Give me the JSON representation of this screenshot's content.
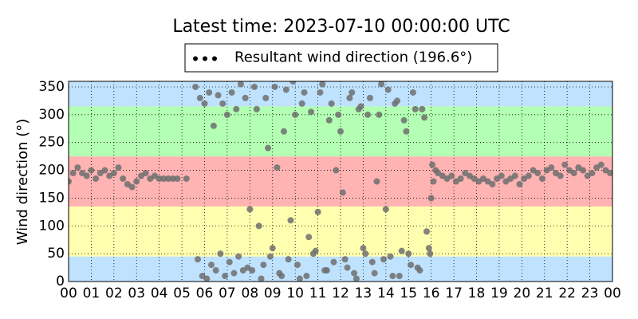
{
  "chart_data": {
    "type": "scatter",
    "title": "Latest time: 2023-07-10 00:00:00 UTC",
    "y_label": "Wind direction (°)",
    "legend_position": "top-center",
    "grid": true,
    "xlim": [
      0,
      24
    ],
    "ylim": [
      0,
      360
    ],
    "xticks": [
      {
        "value": 0,
        "label": "00"
      },
      {
        "value": 1,
        "label": "01"
      },
      {
        "value": 2,
        "label": "02"
      },
      {
        "value": 3,
        "label": "03"
      },
      {
        "value": 4,
        "label": "04"
      },
      {
        "value": 5,
        "label": "05"
      },
      {
        "value": 6,
        "label": "06"
      },
      {
        "value": 7,
        "label": "07"
      },
      {
        "value": 8,
        "label": "08"
      },
      {
        "value": 9,
        "label": "09"
      },
      {
        "value": 10,
        "label": "10"
      },
      {
        "value": 11,
        "label": "11"
      },
      {
        "value": 12,
        "label": "12"
      },
      {
        "value": 13,
        "label": "13"
      },
      {
        "value": 14,
        "label": "14"
      },
      {
        "value": 15,
        "label": "15"
      },
      {
        "value": 16,
        "label": "16"
      },
      {
        "value": 17,
        "label": "17"
      },
      {
        "value": 18,
        "label": "18"
      },
      {
        "value": 19,
        "label": "19"
      },
      {
        "value": 20,
        "label": "20"
      },
      {
        "value": 21,
        "label": "21"
      },
      {
        "value": 22,
        "label": "22"
      },
      {
        "value": 23,
        "label": "23"
      },
      {
        "value": 24,
        "label": "00"
      }
    ],
    "yticks": [
      0,
      50,
      100,
      150,
      200,
      250,
      300,
      350
    ],
    "bands": [
      {
        "from": 0,
        "to": 45,
        "color": "#bfe2ff"
      },
      {
        "from": 45,
        "to": 135,
        "color": "#ffffb0"
      },
      {
        "from": 135,
        "to": 225,
        "color": "#ffb3b3"
      },
      {
        "from": 225,
        "to": 315,
        "color": "#b3ffb3"
      },
      {
        "from": 315,
        "to": 360,
        "color": "#bfe2ff"
      }
    ],
    "series": [
      {
        "name": "Resultant wind direction (196.6°)",
        "color": "#6e6e6e",
        "x": [
          0,
          0.2,
          0.4,
          0.6,
          0.8,
          1,
          1.2,
          1.4,
          1.6,
          1.8,
          2,
          2.2,
          2.4,
          2.6,
          2.8,
          3,
          3.2,
          3.4,
          3.6,
          3.8,
          4,
          4.2,
          4.4,
          4.6,
          4.8,
          5.2,
          5.6,
          5.7,
          5.8,
          5.9,
          6,
          6.1,
          6.2,
          6.3,
          6.4,
          6.5,
          6.6,
          6.7,
          6.8,
          6.9,
          7,
          7.1,
          7.2,
          7.3,
          7.4,
          7.5,
          7.6,
          7.7,
          7.8,
          7.9,
          8,
          8.2,
          8.4,
          8.6,
          8.8,
          9,
          9.2,
          9.4,
          9.6,
          9.8,
          10,
          10.2,
          10.4,
          10.6,
          10.8,
          11,
          11.2,
          11.4,
          11.6,
          11.8,
          12,
          12.2,
          12.4,
          12.6,
          12.8,
          13,
          13.2,
          13.4,
          13.6,
          13.8,
          14,
          14.2,
          14.4,
          14.6,
          14.8,
          15,
          15.2,
          15.4,
          15.6,
          15.8,
          8.1,
          8.3,
          8.5,
          8.7,
          8.9,
          9.1,
          9.3,
          9.5,
          9.7,
          9.9,
          10.1,
          10.3,
          10.5,
          10.7,
          10.9,
          11.1,
          11.3,
          11.5,
          11.7,
          11.9,
          12.1,
          12.3,
          12.5,
          12.7,
          12.9,
          13.1,
          13.3,
          13.5,
          13.7,
          13.9,
          14.1,
          14.3,
          14.5,
          14.7,
          14.9,
          15.1,
          15.3,
          15.5,
          15.7,
          15.9,
          15.95,
          16,
          16.05,
          16.1,
          16.2,
          16.3,
          16.5,
          16.7,
          16.9,
          17.1,
          17.3,
          17.5,
          17.7,
          17.9,
          18.1,
          18.3,
          18.5,
          18.7,
          18.9,
          19.1,
          19.3,
          19.5,
          19.7,
          19.9,
          20.1,
          20.3,
          20.5,
          20.7,
          20.9,
          21.1,
          21.3,
          21.5,
          21.7,
          21.9,
          22.1,
          22.3,
          22.5,
          22.7,
          22.9,
          23.1,
          23.3,
          23.5,
          23.7,
          23.9
        ],
        "values": [
          180,
          195,
          205,
          195,
          190,
          200,
          185,
          195,
          200,
          190,
          195,
          205,
          185,
          175,
          170,
          180,
          190,
          195,
          185,
          190,
          185,
          185,
          185,
          185,
          185,
          185,
          350,
          40,
          330,
          10,
          320,
          5,
          340,
          30,
          280,
          20,
          335,
          50,
          320,
          10,
          300,
          35,
          340,
          15,
          310,
          45,
          355,
          20,
          330,
          25,
          130,
          350,
          100,
          30,
          240,
          60,
          205,
          10,
          345,
          110,
          300,
          5,
          340,
          80,
          50,
          125,
          355,
          20,
          320,
          200,
          270,
          40,
          330,
          15,
          310,
          60,
          300,
          35,
          180,
          355,
          130,
          45,
          320,
          10,
          290,
          50,
          340,
          25,
          310,
          90,
          20,
          310,
          5,
          330,
          45,
          350,
          15,
          270,
          40,
          360,
          30,
          320,
          10,
          305,
          55,
          340,
          20,
          290,
          35,
          300,
          160,
          25,
          340,
          5,
          315,
          50,
          330,
          15,
          300,
          40,
          345,
          10,
          325,
          55,
          270,
          30,
          310,
          20,
          295,
          60,
          50,
          150,
          210,
          180,
          200,
          195,
          190,
          185,
          190,
          180,
          185,
          195,
          190,
          185,
          180,
          185,
          180,
          175,
          185,
          190,
          180,
          185,
          190,
          175,
          185,
          190,
          200,
          195,
          185,
          200,
          205,
          195,
          190,
          210,
          200,
          195,
          205,
          200,
          190,
          195,
          205,
          210,
          200,
          195
        ]
      }
    ]
  }
}
